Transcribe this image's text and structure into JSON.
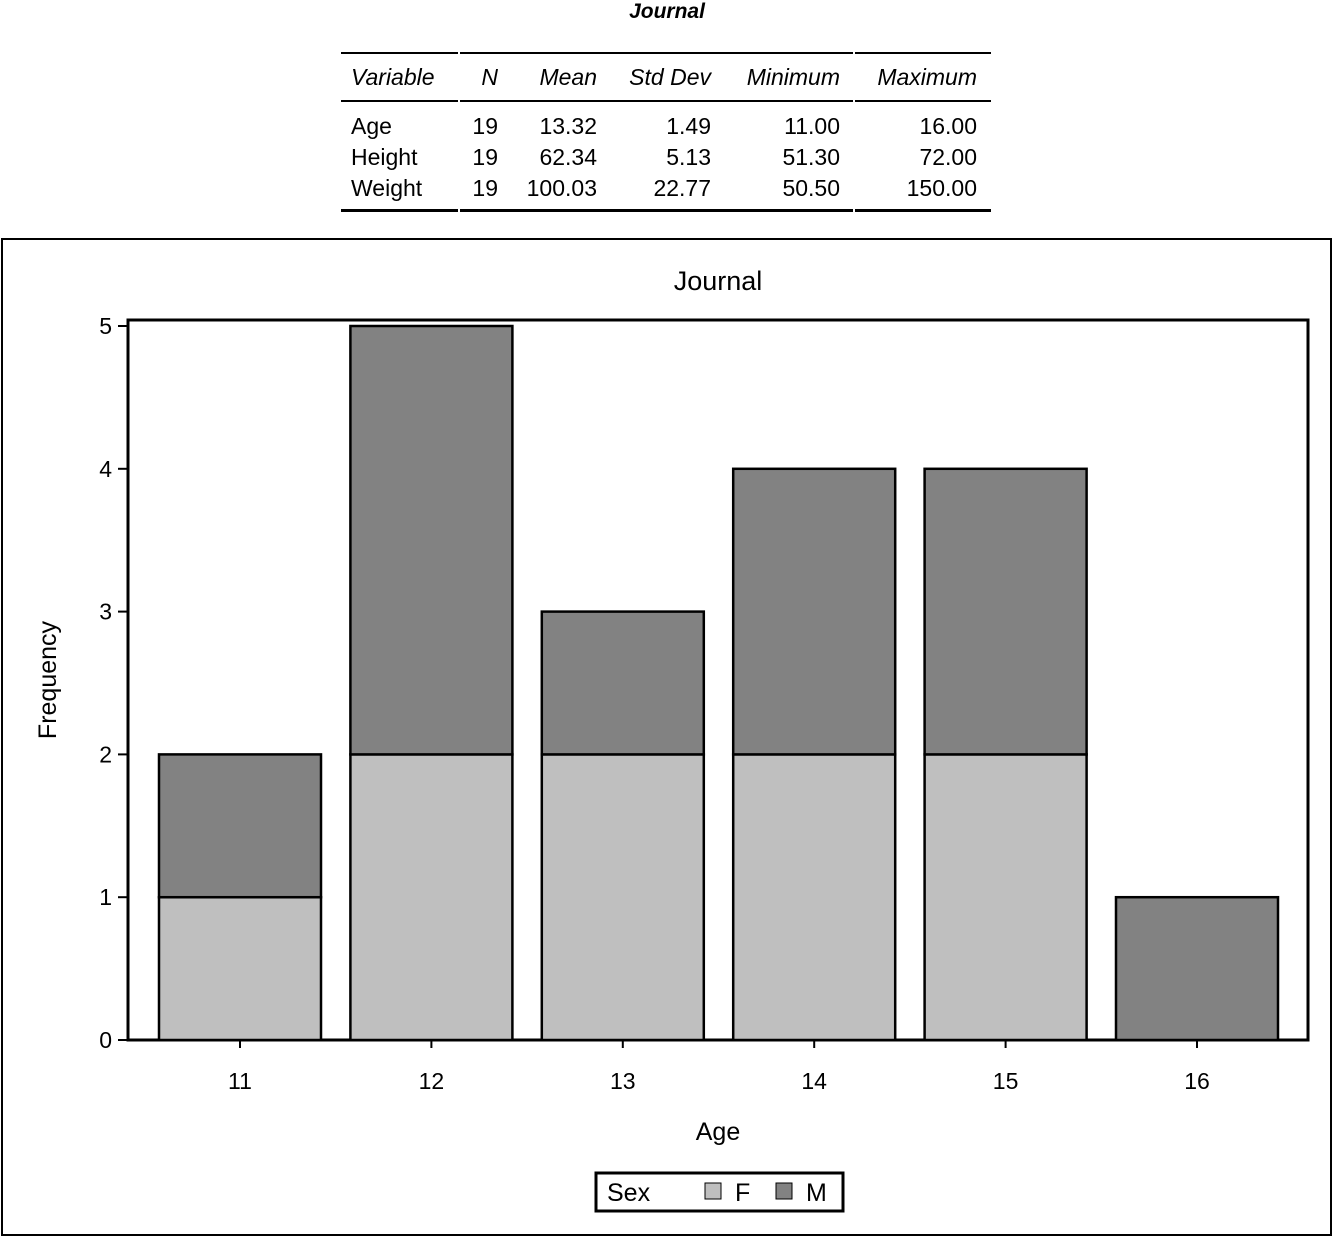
{
  "table": {
    "title": "Journal",
    "columns": [
      "Variable",
      "N",
      "Mean",
      "Std Dev",
      "Minimum",
      "Maximum"
    ],
    "rows": [
      [
        "Age",
        "19",
        "13.32",
        "1.49",
        "11.00",
        "16.00"
      ],
      [
        "Height",
        "19",
        "62.34",
        "5.13",
        "51.30",
        "72.00"
      ],
      [
        "Weight",
        "19",
        "100.03",
        "22.77",
        "50.50",
        "150.00"
      ]
    ]
  },
  "chart_data": {
    "type": "bar",
    "stacked": true,
    "title": "Journal",
    "xlabel": "Age",
    "ylabel": "Frequency",
    "categories": [
      "11",
      "12",
      "13",
      "14",
      "15",
      "16"
    ],
    "series": [
      {
        "name": "F",
        "values": [
          1,
          2,
          2,
          2,
          2,
          0
        ],
        "color": "#bfbfbf"
      },
      {
        "name": "M",
        "values": [
          1,
          3,
          1,
          2,
          2,
          1
        ],
        "color": "#828282"
      }
    ],
    "ylim": [
      0,
      5
    ],
    "yticks": [
      "0",
      "1",
      "2",
      "3",
      "4",
      "5"
    ],
    "grid": false,
    "legend": {
      "title": "Sex",
      "placement": "bottom"
    }
  }
}
